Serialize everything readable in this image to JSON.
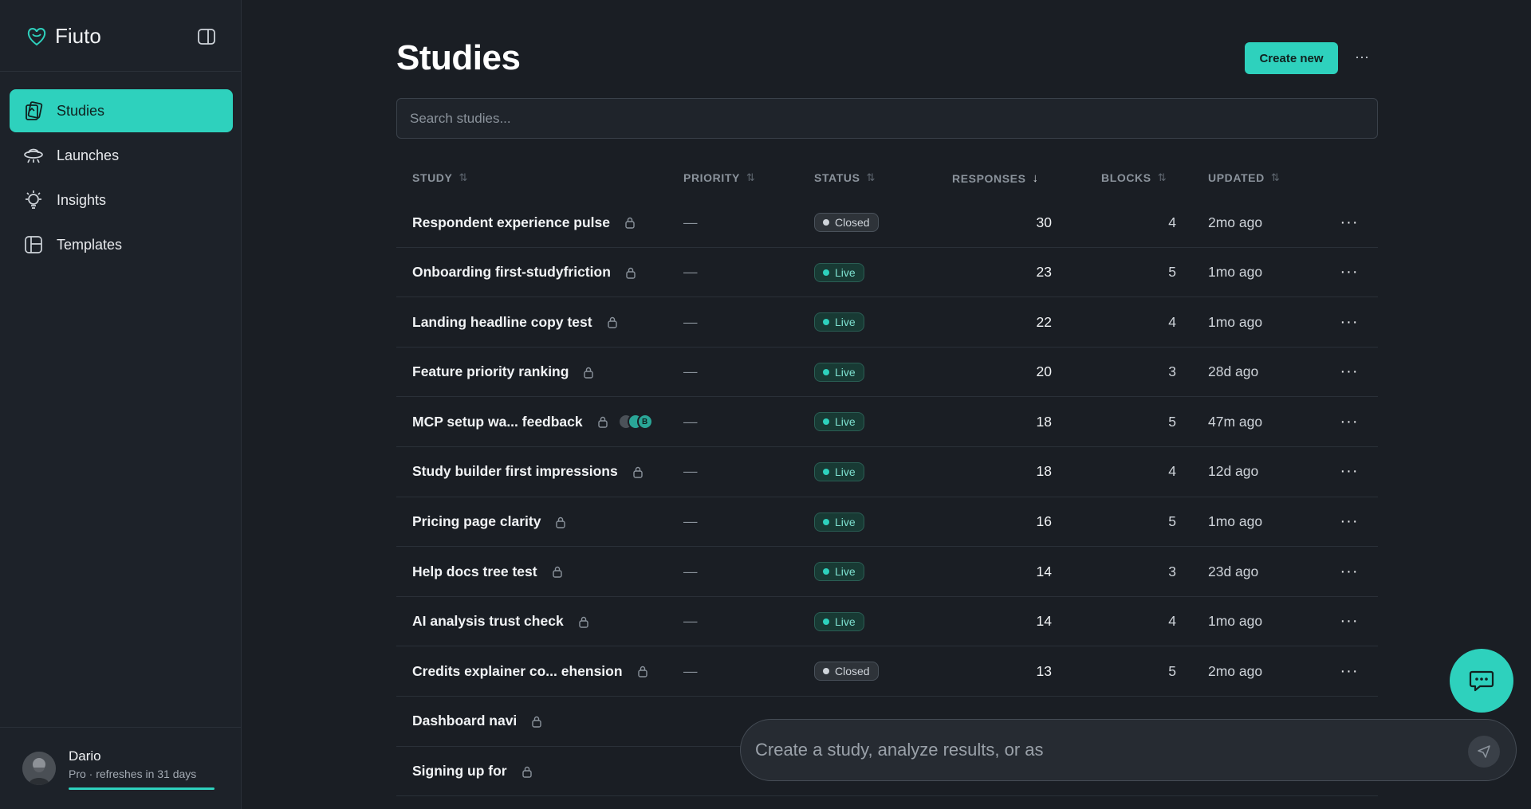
{
  "app": {
    "name": "Fiuto"
  },
  "sidebar": {
    "items": [
      {
        "label": "Studies",
        "icon": "studies-icon",
        "active": true
      },
      {
        "label": "Launches",
        "icon": "launch-icon",
        "active": false
      },
      {
        "label": "Insights",
        "icon": "lightbulb-icon",
        "active": false
      },
      {
        "label": "Templates",
        "icon": "templates-icon",
        "active": false
      }
    ]
  },
  "profile": {
    "name": "Dario",
    "plan": "Pro · refreshes in 31 days"
  },
  "main": {
    "title": "Studies",
    "create_label": "Create new",
    "more_label": "···",
    "search_placeholder": "Search studies..."
  },
  "table": {
    "headers": {
      "study": "STUDY",
      "priority": "PRIORITY",
      "status": "STATUS",
      "responses": "RESPONSES",
      "blocks": "BLOCKS",
      "updated": "UPDATED"
    },
    "sort_icon": "⇅",
    "sort_active_icon": "↓",
    "rows": [
      {
        "study": "Respondent experience pulse",
        "priority": "—",
        "status": "Closed",
        "responses": "30",
        "blocks": "4",
        "updated": "2mo ago"
      },
      {
        "study": "Onboarding first-studyfriction",
        "priority": "—",
        "status": "Live",
        "responses": "23",
        "blocks": "5",
        "updated": "1mo ago"
      },
      {
        "study": "Landing headline copy test",
        "priority": "—",
        "status": "Live",
        "responses": "22",
        "blocks": "4",
        "updated": "1mo ago"
      },
      {
        "study": "Feature priority ranking",
        "priority": "—",
        "status": "Live",
        "responses": "20",
        "blocks": "3",
        "updated": "28d ago"
      },
      {
        "study": "MCP setup wa... feedback",
        "priority": "—",
        "status": "Live",
        "responses": "18",
        "blocks": "5",
        "updated": "47m ago",
        "collab": true
      },
      {
        "study": "Study builder first impressions",
        "priority": "—",
        "status": "Live",
        "responses": "18",
        "blocks": "4",
        "updated": "12d ago"
      },
      {
        "study": "Pricing page clarity",
        "priority": "—",
        "status": "Live",
        "responses": "16",
        "blocks": "5",
        "updated": "1mo ago"
      },
      {
        "study": "Help docs tree test",
        "priority": "—",
        "status": "Live",
        "responses": "14",
        "blocks": "3",
        "updated": "23d ago"
      },
      {
        "study": "AI analysis trust check",
        "priority": "—",
        "status": "Live",
        "responses": "14",
        "blocks": "4",
        "updated": "1mo ago"
      },
      {
        "study": "Credits explainer co... ehension",
        "priority": "—",
        "status": "Closed",
        "responses": "13",
        "blocks": "5",
        "updated": "2mo ago"
      },
      {
        "study": "Dashboard navi",
        "priority": "",
        "status": "",
        "responses": "",
        "blocks": "",
        "updated": ""
      },
      {
        "study": "Signing up for",
        "priority": "",
        "status": "",
        "responses": "",
        "blocks": "",
        "updated": ""
      }
    ]
  },
  "prompt": {
    "placeholder": "Create a study, analyze results, or as"
  },
  "colors": {
    "accent": "#2ed1bd",
    "background": "#1a1e24",
    "sidebar": "#1d2229"
  }
}
